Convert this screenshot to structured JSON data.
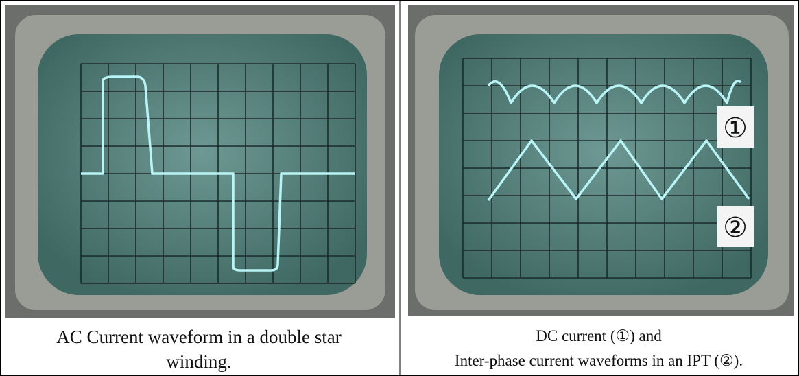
{
  "table": {
    "cells": [
      {
        "caption": [
          "AC Current waveform in a double star",
          "winding."
        ]
      },
      {
        "labels": [
          "①",
          "②"
        ],
        "caption": [
          "DC current (①) and",
          "Inter-phase current waveforms in an IPT (②)."
        ]
      }
    ]
  }
}
